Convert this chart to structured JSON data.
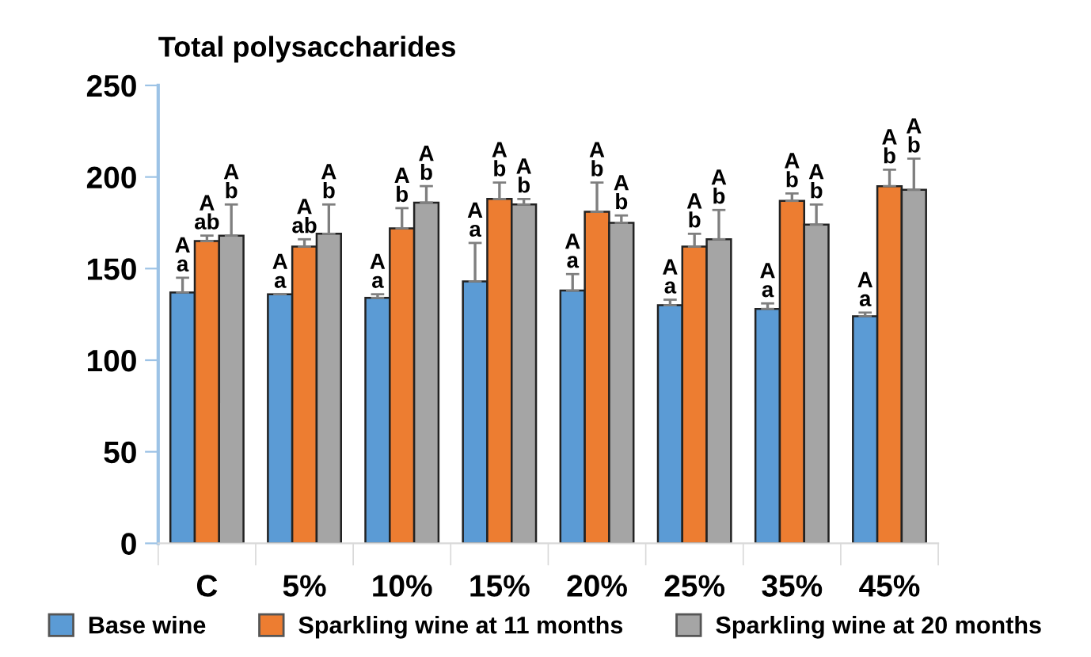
{
  "chart_data": {
    "type": "bar",
    "title": "Total polysaccharides",
    "categories": [
      "C",
      "5%",
      "10%",
      "15%",
      "20%",
      "25%",
      "35%",
      "45%"
    ],
    "series": [
      {
        "name": "Base wine",
        "color": "#5b9bd5",
        "values": [
          137,
          136,
          134,
          143,
          138,
          130,
          128,
          124
        ],
        "errors": [
          [
            137,
            145
          ],
          [
            136,
            136
          ],
          [
            134,
            136
          ],
          [
            143,
            164
          ],
          [
            138,
            147
          ],
          [
            130,
            133
          ],
          [
            128,
            131
          ],
          [
            124,
            126
          ]
        ],
        "value_labels": [
          "A\na",
          "A\na",
          "A\na",
          "A\na",
          "A\na",
          "A\na",
          "A\na",
          "A\na"
        ]
      },
      {
        "name": "Sparkling wine at 11 months",
        "color": "#ed7d31",
        "values": [
          165,
          162,
          172,
          188,
          181,
          162,
          187,
          195
        ],
        "errors": [
          [
            165,
            168
          ],
          [
            162,
            166
          ],
          [
            172,
            183
          ],
          [
            188,
            197
          ],
          [
            181,
            197
          ],
          [
            162,
            169
          ],
          [
            187,
            191
          ],
          [
            195,
            204
          ]
        ],
        "value_labels": [
          "A\nab",
          "A\nab",
          "A\nb",
          "A\nb",
          "A\nb",
          "A\nb",
          "A\nb",
          "A\nb"
        ]
      },
      {
        "name": "Sparkling wine at 20 months",
        "color": "#a5a5a5",
        "values": [
          168,
          169,
          186,
          185,
          175,
          166,
          174,
          193
        ],
        "errors": [
          [
            168,
            185
          ],
          [
            169,
            185
          ],
          [
            186,
            195
          ],
          [
            185,
            188
          ],
          [
            175,
            179
          ],
          [
            166,
            182
          ],
          [
            174,
            185
          ],
          [
            193,
            210
          ]
        ],
        "value_labels": [
          "A\nb",
          "A\nb",
          "A\nb",
          "A\nb",
          "A\nb",
          "A\nb",
          "A\nb",
          "A\nb"
        ]
      }
    ],
    "ylim": [
      0,
      250
    ],
    "yticks": [
      0,
      50,
      100,
      150,
      200,
      250
    ],
    "grid": false,
    "legend": "bottom"
  }
}
